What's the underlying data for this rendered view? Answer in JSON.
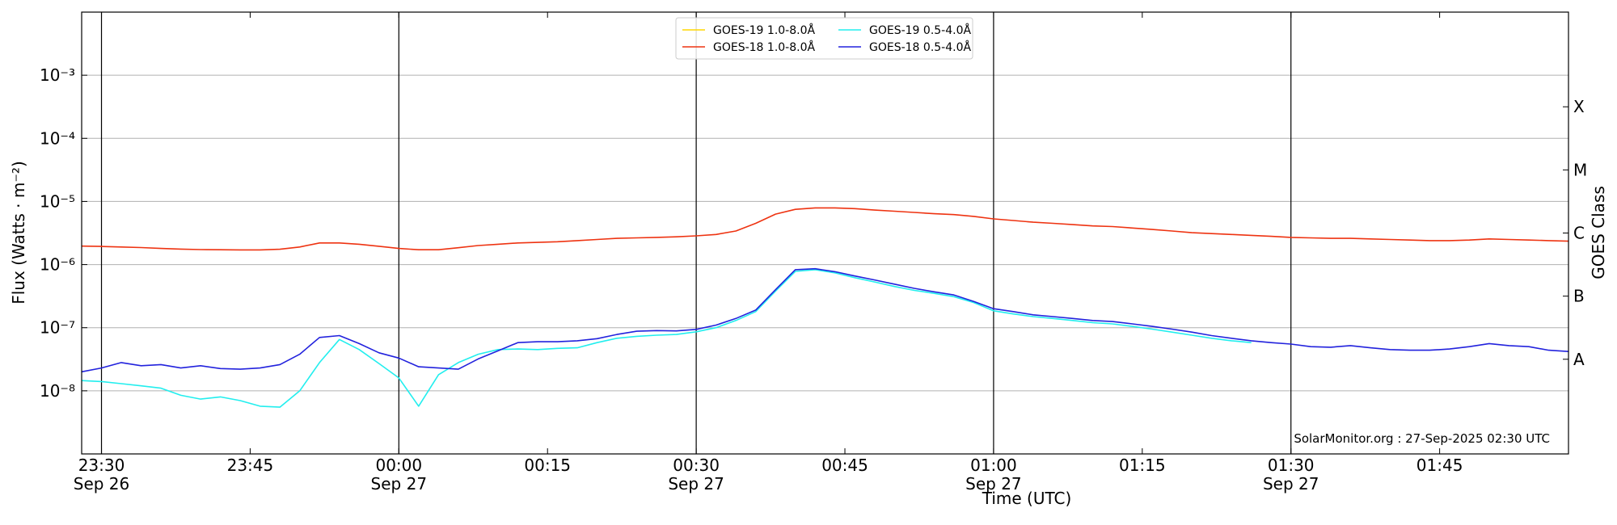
{
  "chart_data": {
    "type": "line",
    "ylabel": "Flux (Watts · m⁻²)",
    "y2label": "GOES Class",
    "xlabel": "Time (UTC)",
    "annotation": "SolarMonitor.org : 27-Sep-2025 02:30 UTC",
    "log_y": true,
    "grid": true,
    "legend": "upper center",
    "xlim": [
      "Sep 26 23:28",
      "Sep 27 01:58"
    ],
    "xticks": [
      {
        "value": "Sep 26 23:30",
        "label": "23:30\nSep 26"
      },
      {
        "value": "Sep 26 23:45",
        "label": "23:45"
      },
      {
        "value": "Sep 27 00:00",
        "label": "00:00\nSep 27"
      },
      {
        "value": "Sep 27 00:15",
        "label": "00:15"
      },
      {
        "value": "Sep 27 00:30",
        "label": "00:30\nSep 27"
      },
      {
        "value": "Sep 27 00:45",
        "label": "00:45"
      },
      {
        "value": "Sep 27 01:00",
        "label": "01:00\nSep 27"
      },
      {
        "value": "Sep 27 01:15",
        "label": "01:15"
      },
      {
        "value": "Sep 27 01:30",
        "label": "01:30\nSep 27"
      },
      {
        "value": "Sep 27 01:45",
        "label": "01:45"
      }
    ],
    "ylim": [
      1e-09,
      0.01
    ],
    "yticks": [
      {
        "value": 1e-08,
        "label": "10⁻⁸"
      },
      {
        "value": 1e-07,
        "label": "10⁻⁷"
      },
      {
        "value": 1e-06,
        "label": "10⁻⁶"
      },
      {
        "value": 1e-05,
        "label": "10⁻⁵"
      },
      {
        "value": 0.0001,
        "label": "10⁻⁴"
      },
      {
        "value": 0.001,
        "label": "10⁻³"
      }
    ],
    "y2lim": [
      1e-09,
      0.01
    ],
    "y2ticks": [
      {
        "value": 3.1623e-08,
        "label": "A"
      },
      {
        "value": 3.1623e-07,
        "label": "B"
      },
      {
        "value": 3.1623e-06,
        "label": "C"
      },
      {
        "value": 3.1623e-05,
        "label": "M"
      },
      {
        "value": 0.00031623,
        "label": "X"
      }
    ],
    "x": [
      "Sep 26 23:28",
      "Sep 26 23:30",
      "Sep 26 23:32",
      "Sep 26 23:34",
      "Sep 26 23:36",
      "Sep 26 23:38",
      "Sep 26 23:40",
      "Sep 26 23:42",
      "Sep 26 23:44",
      "Sep 26 23:46",
      "Sep 26 23:48",
      "Sep 26 23:50",
      "Sep 26 23:52",
      "Sep 26 23:54",
      "Sep 26 23:56",
      "Sep 26 23:58",
      "Sep 27 00:00",
      "Sep 27 00:02",
      "Sep 27 00:04",
      "Sep 27 00:06",
      "Sep 27 00:08",
      "Sep 27 00:10",
      "Sep 27 00:12",
      "Sep 27 00:14",
      "Sep 27 00:16",
      "Sep 27 00:18",
      "Sep 27 00:20",
      "Sep 27 00:22",
      "Sep 27 00:24",
      "Sep 27 00:26",
      "Sep 27 00:28",
      "Sep 27 00:30",
      "Sep 27 00:32",
      "Sep 27 00:34",
      "Sep 27 00:36",
      "Sep 27 00:38",
      "Sep 27 00:40",
      "Sep 27 00:42",
      "Sep 27 00:44",
      "Sep 27 00:46",
      "Sep 27 00:48",
      "Sep 27 00:50",
      "Sep 27 00:52",
      "Sep 27 00:54",
      "Sep 27 00:56",
      "Sep 27 00:58",
      "Sep 27 01:00",
      "Sep 27 01:02",
      "Sep 27 01:04",
      "Sep 27 01:06",
      "Sep 27 01:08",
      "Sep 27 01:10",
      "Sep 27 01:12",
      "Sep 27 01:14",
      "Sep 27 01:16",
      "Sep 27 01:18",
      "Sep 27 01:20",
      "Sep 27 01:22",
      "Sep 27 01:24",
      "Sep 27 01:26",
      "Sep 27 01:28",
      "Sep 27 01:30",
      "Sep 27 01:32",
      "Sep 27 01:34",
      "Sep 27 01:36",
      "Sep 27 01:38",
      "Sep 27 01:40",
      "Sep 27 01:42",
      "Sep 27 01:44",
      "Sep 27 01:46",
      "Sep 27 01:48",
      "Sep 27 01:50",
      "Sep 27 01:52",
      "Sep 27 01:54",
      "Sep 27 01:56",
      "Sep 27 01:58"
    ],
    "series": [
      {
        "name": "GOES-19 1.0-8.0Å",
        "color": "#ffd700",
        "values": [
          null,
          null,
          null,
          null,
          null,
          null,
          null,
          null,
          null,
          null,
          null,
          null,
          null,
          null,
          null,
          null,
          null,
          null,
          null,
          null,
          null,
          null,
          null,
          null,
          null,
          null,
          null,
          null,
          null,
          null,
          null,
          null,
          null,
          null,
          null,
          null,
          null,
          null,
          null,
          null,
          null,
          null,
          null,
          null,
          null,
          null,
          null,
          null,
          null,
          null,
          null,
          null,
          null,
          null,
          null,
          null,
          null,
          null,
          null,
          null,
          null,
          null,
          null,
          null,
          null,
          null,
          null,
          null,
          null,
          null,
          null,
          null,
          null,
          null,
          null,
          null
        ]
      },
      {
        "name": "GOES-18 1.0-8.0Å",
        "color": "#ee3311",
        "values": [
          1.96e-06,
          1.94e-06,
          1.9e-06,
          1.86e-06,
          1.8e-06,
          1.76e-06,
          1.73e-06,
          1.72e-06,
          1.71e-06,
          1.71e-06,
          1.75e-06,
          1.9e-06,
          2.2e-06,
          2.2e-06,
          2.1e-06,
          1.95e-06,
          1.8e-06,
          1.72e-06,
          1.72e-06,
          1.85e-06,
          2e-06,
          2.1e-06,
          2.2e-06,
          2.25e-06,
          2.3e-06,
          2.4e-06,
          2.5e-06,
          2.6e-06,
          2.65e-06,
          2.7e-06,
          2.75e-06,
          2.85e-06,
          3e-06,
          3.4e-06,
          4.5e-06,
          6.3e-06,
          7.5e-06,
          7.9e-06,
          7.9e-06,
          7.7e-06,
          7.3e-06,
          7e-06,
          6.7e-06,
          6.4e-06,
          6.2e-06,
          5.8e-06,
          5.3e-06,
          5e-06,
          4.7e-06,
          4.5e-06,
          4.3e-06,
          4.1e-06,
          4e-06,
          3.8e-06,
          3.6e-06,
          3.4e-06,
          3.2e-06,
          3.1e-06,
          3e-06,
          2.9e-06,
          2.8e-06,
          2.7e-06,
          2.65e-06,
          2.6e-06,
          2.6e-06,
          2.55e-06,
          2.5e-06,
          2.45e-06,
          2.4e-06,
          2.4e-06,
          2.45e-06,
          2.55e-06,
          2.5e-06,
          2.45e-06,
          2.4e-06,
          2.35e-06
        ]
      },
      {
        "name": "GOES-19 0.5-4.0Å",
        "color": "#22eeee",
        "values": [
          1.45e-08,
          1.4e-08,
          1.3e-08,
          1.2e-08,
          1.1e-08,
          8.5e-09,
          7.4e-09,
          8e-09,
          7e-09,
          5.7e-09,
          5.5e-09,
          1e-08,
          2.8e-08,
          6.5e-08,
          4.5e-08,
          2.7e-08,
          1.6e-08,
          5.7e-09,
          1.8e-08,
          2.8e-08,
          3.8e-08,
          4.5e-08,
          4.6e-08,
          4.5e-08,
          4.7e-08,
          4.8e-08,
          5.8e-08,
          6.8e-08,
          7.3e-08,
          7.6e-08,
          7.8e-08,
          8.6e-08,
          1e-07,
          1.3e-07,
          1.8e-07,
          3.8e-07,
          7.8e-07,
          8.3e-07,
          7.4e-07,
          6.2e-07,
          5.3e-07,
          4.5e-07,
          3.9e-07,
          3.5e-07,
          3.1e-07,
          2.5e-07,
          1.85e-07,
          1.65e-07,
          1.5e-07,
          1.4e-07,
          1.3e-07,
          1.2e-07,
          1.15e-07,
          1.05e-07,
          9.5e-08,
          8.5e-08,
          7.6e-08,
          6.8e-08,
          6.2e-08,
          5.8e-08,
          null,
          null,
          null,
          null,
          null,
          null,
          null,
          null,
          null,
          null,
          null,
          null,
          null,
          null,
          null,
          null
        ]
      },
      {
        "name": "GOES-18 0.5-4.0Å",
        "color": "#2222dd",
        "values": [
          2e-08,
          2.3e-08,
          2.8e-08,
          2.5e-08,
          2.6e-08,
          2.3e-08,
          2.5e-08,
          2.25e-08,
          2.2e-08,
          2.3e-08,
          2.6e-08,
          3.8e-08,
          7e-08,
          7.5e-08,
          5.6e-08,
          4e-08,
          3.3e-08,
          2.4e-08,
          2.3e-08,
          2.2e-08,
          3.2e-08,
          4.3e-08,
          5.8e-08,
          6e-08,
          6e-08,
          6.2e-08,
          6.7e-08,
          7.8e-08,
          8.8e-08,
          9e-08,
          8.9e-08,
          9.4e-08,
          1.1e-07,
          1.4e-07,
          1.9e-07,
          4e-07,
          8.3e-07,
          8.6e-07,
          7.7e-07,
          6.6e-07,
          5.7e-07,
          4.9e-07,
          4.2e-07,
          3.7e-07,
          3.3e-07,
          2.6e-07,
          2e-07,
          1.8e-07,
          1.6e-07,
          1.5e-07,
          1.4e-07,
          1.3e-07,
          1.25e-07,
          1.15e-07,
          1.05e-07,
          9.5e-08,
          8.5e-08,
          7.5e-08,
          6.8e-08,
          6.2e-08,
          5.8e-08,
          5.5e-08,
          5e-08,
          4.9e-08,
          5.2e-08,
          4.8e-08,
          4.5e-08,
          4.4e-08,
          4.4e-08,
          4.6e-08,
          5e-08,
          5.6e-08,
          5.2e-08,
          5e-08,
          4.4e-08,
          4.2e-08
        ]
      }
    ]
  }
}
